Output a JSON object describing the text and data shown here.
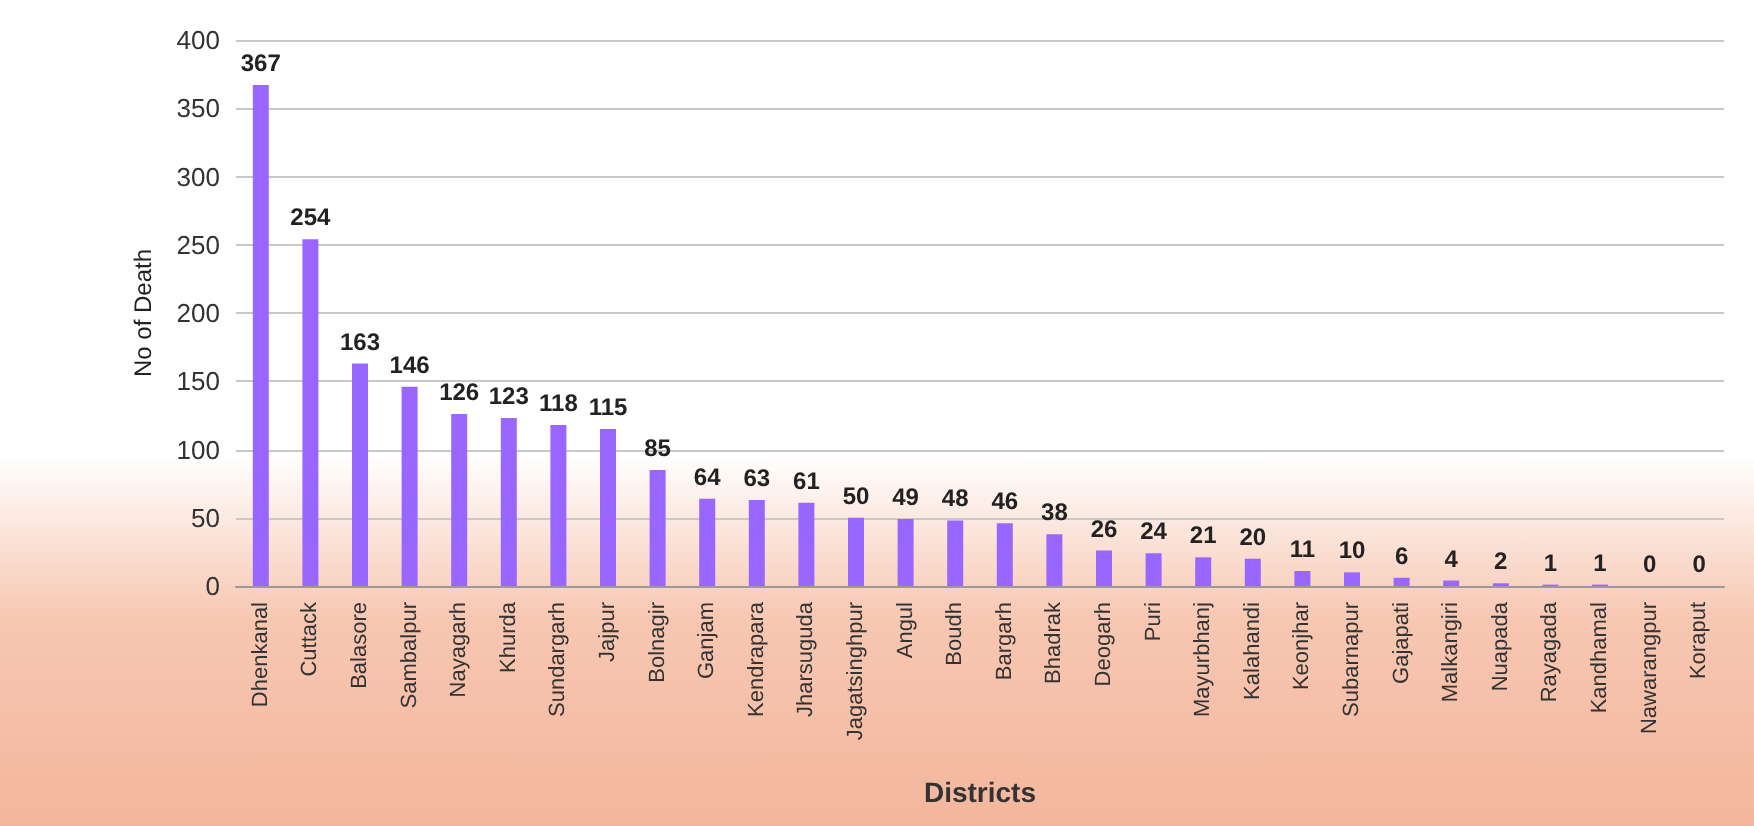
{
  "chart_data": {
    "type": "bar",
    "xlabel": "Districts",
    "ylabel": "No of Death",
    "categories": [
      "Dhenkanal",
      "Cuttack",
      "Balasore",
      "Sambalpur",
      "Nayagarh",
      "Khurda",
      "Sundargarh",
      "Jajpur",
      "Bolnagir",
      "Ganjam",
      "Kendrapara",
      "Jharsuguda",
      "Jagatsinghpur",
      "Angul",
      "Boudh",
      "Bargarh",
      "Bhadrak",
      "Deogarh",
      "Puri",
      "Mayurbhanj",
      "Kalahandi",
      "Keonjhar",
      "Subarnapur",
      "Gajapati",
      "Malkangiri",
      "Nuapada",
      "Rayagada",
      "Kandhamal",
      "Nawarangpur",
      "Koraput"
    ],
    "values": [
      367,
      254,
      163,
      146,
      126,
      123,
      118,
      115,
      85,
      64,
      63,
      61,
      50,
      49,
      48,
      46,
      38,
      26,
      24,
      21,
      20,
      11,
      10,
      6,
      4,
      2,
      1,
      1,
      0,
      0
    ],
    "color": "#9966ff",
    "ylim": [
      0,
      400
    ],
    "yticks": [
      0,
      50,
      100,
      150,
      200,
      250,
      300,
      350,
      400
    ],
    "grid": "y",
    "data_labels": true
  }
}
